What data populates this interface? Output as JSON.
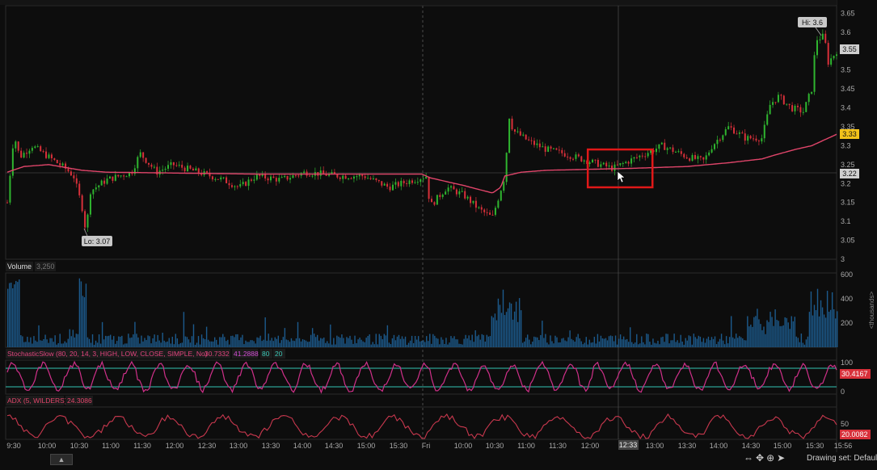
{
  "colors": {
    "background": "#0d0d0d",
    "candle_up": "#2fb52f",
    "candle_down": "#d8303a",
    "vwap": "#e0456a",
    "volume": "#1c5a8c",
    "stochastic": "#d0308a",
    "stoch_bands": "#34c2b2",
    "adx": "#c8384e",
    "highlight_box": "#e01818"
  },
  "price_panel": {
    "y_ticks": [
      "3.65",
      "3.6",
      "3.55",
      "3.5",
      "3.45",
      "3.4",
      "3.35",
      "3.3",
      "3.25",
      "3.2",
      "3.15",
      "3.1",
      "3.05",
      "3"
    ],
    "badges": {
      "price_55": "3.55",
      "price_33": "3.33",
      "price_22": "3.22"
    },
    "hi_label": "Hi: 3.6",
    "lo_label": "Lo: 3.07"
  },
  "volume_panel": {
    "title": "Volume",
    "value": "3,250",
    "y_ticks": [
      "600",
      "400",
      "200"
    ],
    "unit_label": "<thousands>"
  },
  "stochastic_panel": {
    "title": "StochasticSlow (80, 20, 14, 3, HIGH, LOW, CLOSE, SIMPLE, No)",
    "value1": "30.7332",
    "value2": "41.2888",
    "over_bought": "80",
    "over_sold": "20",
    "y_ticks": [
      "100",
      "0"
    ],
    "badge": "30.4167"
  },
  "adx_panel": {
    "title": "ADX (5, WILDERS)",
    "value": "24.3086",
    "y_tick": "50",
    "badge": "20.0082"
  },
  "time_axis": {
    "labels": [
      "9:30",
      "10:00",
      "10:30",
      "11:00",
      "11:30",
      "12:00",
      "12:30",
      "13:00",
      "13:30",
      "14:00",
      "14:30",
      "15:00",
      "15:30",
      "Fri",
      "10:00",
      "10:30",
      "11:00",
      "11:30",
      "12:00",
      "13:00",
      "13:30",
      "14:00",
      "14:30",
      "15:00",
      "15:30",
      "15:56"
    ],
    "crosshair_time": "12:33"
  },
  "footer": {
    "drawing_set": "Drawing set: Default",
    "collapse_icon": "chevron-up-icon"
  },
  "chart_data": {
    "type": "candlestick",
    "price_range": [
      3.0,
      3.67
    ],
    "price_path": [
      [
        0,
        3.15
      ],
      [
        0.008,
        3.33
      ],
      [
        0.015,
        3.27
      ],
      [
        0.03,
        3.3
      ],
      [
        0.05,
        3.27
      ],
      [
        0.07,
        3.24
      ],
      [
        0.08,
        3.22
      ],
      [
        0.09,
        3.14
      ],
      [
        0.095,
        3.07
      ],
      [
        0.1,
        3.18
      ],
      [
        0.12,
        3.21
      ],
      [
        0.15,
        3.23
      ],
      [
        0.16,
        3.28
      ],
      [
        0.18,
        3.23
      ],
      [
        0.2,
        3.25
      ],
      [
        0.23,
        3.23
      ],
      [
        0.26,
        3.21
      ],
      [
        0.28,
        3.19
      ],
      [
        0.3,
        3.22
      ],
      [
        0.33,
        3.21
      ],
      [
        0.36,
        3.23
      ],
      [
        0.4,
        3.22
      ],
      [
        0.43,
        3.22
      ],
      [
        0.46,
        3.19
      ],
      [
        0.49,
        3.21
      ],
      [
        0.505,
        3.22
      ],
      [
        0.51,
        3.14
      ],
      [
        0.53,
        3.19
      ],
      [
        0.55,
        3.17
      ],
      [
        0.57,
        3.13
      ],
      [
        0.585,
        3.11
      ],
      [
        0.6,
        3.22
      ],
      [
        0.605,
        3.38
      ],
      [
        0.61,
        3.34
      ],
      [
        0.63,
        3.31
      ],
      [
        0.65,
        3.29
      ],
      [
        0.67,
        3.28
      ],
      [
        0.7,
        3.26
      ],
      [
        0.73,
        3.24
      ],
      [
        0.76,
        3.27
      ],
      [
        0.79,
        3.3
      ],
      [
        0.82,
        3.27
      ],
      [
        0.84,
        3.26
      ],
      [
        0.85,
        3.3
      ],
      [
        0.87,
        3.35
      ],
      [
        0.89,
        3.32
      ],
      [
        0.91,
        3.32
      ],
      [
        0.92,
        3.41
      ],
      [
        0.93,
        3.43
      ],
      [
        0.945,
        3.4
      ],
      [
        0.96,
        3.39
      ],
      [
        0.97,
        3.45
      ],
      [
        0.975,
        3.58
      ],
      [
        0.985,
        3.59
      ],
      [
        0.99,
        3.52
      ],
      [
        1.0,
        3.55
      ]
    ],
    "vwap_path": [
      [
        0,
        3.23
      ],
      [
        0.02,
        3.245
      ],
      [
        0.05,
        3.25
      ],
      [
        0.09,
        3.235
      ],
      [
        0.12,
        3.23
      ],
      [
        0.3,
        3.225
      ],
      [
        0.5,
        3.225
      ],
      [
        0.51,
        3.215
      ],
      [
        0.55,
        3.195
      ],
      [
        0.585,
        3.175
      ],
      [
        0.595,
        3.19
      ],
      [
        0.6,
        3.22
      ],
      [
        0.62,
        3.23
      ],
      [
        0.65,
        3.235
      ],
      [
        0.75,
        3.24
      ],
      [
        0.82,
        3.245
      ],
      [
        0.87,
        3.255
      ],
      [
        0.91,
        3.265
      ],
      [
        0.925,
        3.275
      ],
      [
        0.95,
        3.29
      ],
      [
        0.97,
        3.3
      ],
      [
        1.0,
        3.33
      ]
    ],
    "highlight_box": {
      "price_range": [
        3.19,
        3.29
      ],
      "x_fraction": [
        0.7,
        0.778
      ]
    }
  }
}
